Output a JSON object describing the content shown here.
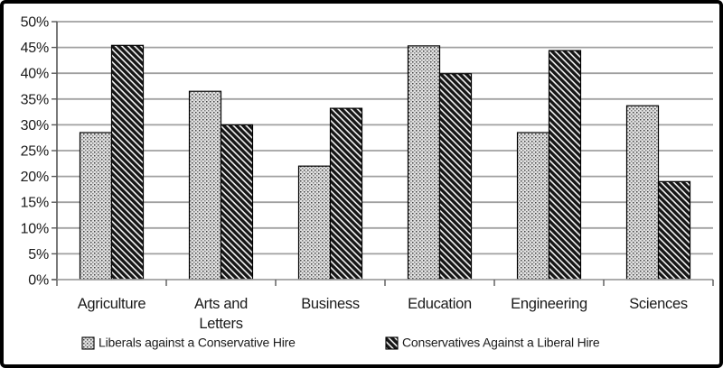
{
  "frame": {
    "background": "#ffffff",
    "border_color": "#000000"
  },
  "chart_data": {
    "type": "bar",
    "title": "",
    "xlabel": "",
    "ylabel": "",
    "categories": [
      "Agriculture",
      "Arts and Letters",
      "Business",
      "Education",
      "Engineering",
      "Sciences"
    ],
    "category_label_lines": [
      [
        "Agriculture"
      ],
      [
        "Arts and",
        "Letters"
      ],
      [
        "Business"
      ],
      [
        "Education"
      ],
      [
        "Engineering"
      ],
      [
        "Sciences"
      ]
    ],
    "series": [
      {
        "name": "Liberals against a Conservative Hire",
        "short": "liberals",
        "pattern": "dotted",
        "values": [
          28.5,
          36.5,
          22.0,
          45.3,
          28.5,
          33.7
        ]
      },
      {
        "name": "Conservatives Against a Liberal Hire",
        "short": "conservatives",
        "pattern": "diagonal-stripes",
        "values": [
          45.4,
          30.0,
          33.2,
          39.9,
          44.4,
          19.0
        ]
      }
    ],
    "ylim": [
      0,
      50
    ],
    "y_tick_step": 5,
    "y_tick_labels": [
      "0%",
      "5%",
      "10%",
      "15%",
      "20%",
      "25%",
      "30%",
      "35%",
      "40%",
      "45%",
      "50%"
    ],
    "grid": true,
    "legend_position": "bottom",
    "colors": {
      "grid": "#a0a0a0",
      "axis": "#595959",
      "bar_border": "#000000",
      "text": "#1a1a1a",
      "dot_fill_base": "#e2e2e2",
      "dot_color": "#3f3f3f",
      "stripe_base": "#161616",
      "stripe_color": "#f5f5f5"
    }
  }
}
